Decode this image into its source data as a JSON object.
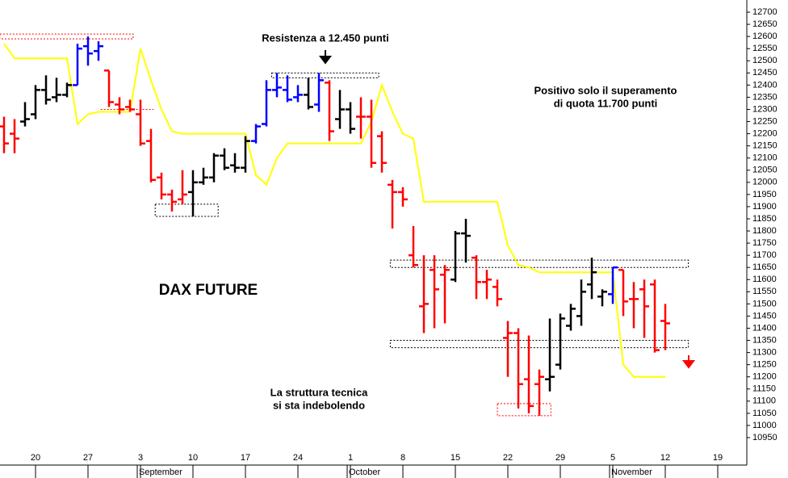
{
  "chart_data": {
    "type": "ohlc",
    "title": "DAX FUTURE",
    "categories": [
      null,
      null,
      null,
      "20",
      null,
      null,
      null,
      null,
      "27",
      null,
      null,
      null,
      null,
      "3",
      null,
      null,
      null,
      null,
      "10",
      null,
      null,
      null,
      null,
      "17",
      null,
      null,
      null,
      null,
      "24",
      null,
      null,
      null,
      null,
      "1",
      null,
      null,
      null,
      null,
      "8",
      null,
      null,
      null,
      null,
      "15",
      null,
      null,
      null,
      null,
      "22",
      null,
      null,
      null,
      null,
      "29",
      null,
      null,
      null,
      null,
      "5",
      null,
      null,
      null,
      null,
      "12",
      null,
      null,
      null,
      null,
      "19"
    ],
    "months": [
      "September",
      "October",
      "November"
    ],
    "open": [
      12230,
      12200,
      12250,
      12280,
      12380,
      12350,
      12360,
      12400,
      12560,
      12540,
      12460,
      12320,
      12310,
      12280,
      12170,
      12020,
      11950,
      11930,
      11960,
      12000,
      12020,
      12110,
      12070,
      12060,
      12170,
      12240,
      12380,
      12380,
      12350,
      12360,
      12320,
      12410,
      12260,
      12300,
      12270,
      12270,
      12190,
      11990,
      11960,
      11700,
      11490,
      11640,
      11620,
      11600,
      11790,
      11690,
      11590,
      11570,
      11360,
      11380,
      11190,
      11170,
      11190,
      11250,
      11410,
      11450,
      11580,
      11530,
      11540,
      11640,
      11520,
      11560,
      11580,
      11430,
      null,
      null,
      null,
      null,
      null
    ],
    "high": [
      12270,
      12260,
      12330,
      12400,
      12440,
      12430,
      12410,
      12570,
      12600,
      12580,
      12460,
      12350,
      12340,
      12340,
      12220,
      12040,
      11970,
      12050,
      12050,
      12060,
      12120,
      12140,
      12120,
      12190,
      12240,
      12420,
      12450,
      12440,
      12400,
      12430,
      12450,
      12420,
      12380,
      12330,
      12350,
      12340,
      12210,
      12010,
      11980,
      11820,
      11700,
      11700,
      11660,
      11800,
      11850,
      11700,
      11640,
      11600,
      11430,
      11400,
      11370,
      11230,
      11440,
      11460,
      11500,
      11600,
      11690,
      11560,
      11650,
      11640,
      11590,
      11600,
      11600,
      11500,
      null,
      null,
      null,
      null,
      null
    ],
    "low": [
      12120,
      12120,
      12230,
      12260,
      12320,
      12330,
      12350,
      12400,
      12480,
      12500,
      12310,
      12280,
      12290,
      12150,
      12000,
      11930,
      11880,
      11910,
      11860,
      11990,
      12000,
      12050,
      12040,
      12040,
      12160,
      12230,
      12350,
      12330,
      12330,
      12300,
      12290,
      12170,
      12220,
      12200,
      12180,
      12060,
      12040,
      11810,
      11900,
      11650,
      11380,
      11400,
      11420,
      11590,
      11670,
      11520,
      11520,
      11490,
      11200,
      11070,
      11050,
      11040,
      11140,
      11230,
      11390,
      11410,
      11520,
      11490,
      11500,
      11450,
      11400,
      11360,
      11300,
      11310,
      null,
      null,
      null,
      null,
      null
    ],
    "close": [
      12160,
      12180,
      12260,
      12380,
      12340,
      12360,
      12400,
      12550,
      12530,
      12560,
      12330,
      12300,
      12300,
      12160,
      12010,
      11950,
      11920,
      11950,
      12000,
      12020,
      12110,
      12060,
      12060,
      12170,
      12230,
      12380,
      12390,
      12340,
      12360,
      12310,
      12420,
      12210,
      12300,
      12220,
      12270,
      12080,
      12080,
      11960,
      11930,
      11660,
      11500,
      11560,
      11640,
      11790,
      11780,
      11590,
      11600,
      11520,
      11380,
      11170,
      11080,
      11200,
      11200,
      11440,
      11480,
      11550,
      11630,
      11550,
      11650,
      11510,
      11520,
      11490,
      11310,
      11420,
      null,
      null,
      null,
      null,
      null
    ],
    "bar_colors": [
      "#ff0000",
      "#ff0000",
      "#000000",
      "#000000",
      "#000000",
      "#000000",
      "#000000",
      "#0000ff",
      "#0000ff",
      "#0000ff",
      "#ff0000",
      "#ff0000",
      "#ff0000",
      "#ff0000",
      "#ff0000",
      "#ff0000",
      "#ff0000",
      "#ff0000",
      "#000000",
      "#000000",
      "#000000",
      "#000000",
      "#000000",
      "#000000",
      "#0000ff",
      "#0000ff",
      "#0000ff",
      "#0000ff",
      "#0000ff",
      "#000000",
      "#0000ff",
      "#ff0000",
      "#000000",
      "#000000",
      "#ff0000",
      "#ff0000",
      "#ff0000",
      "#ff0000",
      "#ff0000",
      "#ff0000",
      "#ff0000",
      "#ff0000",
      "#ff0000",
      "#000000",
      "#000000",
      "#ff0000",
      "#ff0000",
      "#ff0000",
      "#ff0000",
      "#ff0000",
      "#ff0000",
      "#ff0000",
      "#000000",
      "#000000",
      "#000000",
      "#000000",
      "#000000",
      "#000000",
      "#0000ff",
      "#ff0000",
      "#ff0000",
      "#ff0000",
      "#ff0000",
      "#ff0000",
      null,
      null,
      null,
      null,
      null
    ],
    "trend": {
      "color": "#ffff00",
      "values": [
        12570,
        12510,
        12510,
        12510,
        12510,
        12510,
        12510,
        12240,
        12280,
        12290,
        12290,
        12290,
        12290,
        12550,
        12420,
        12300,
        12210,
        12200,
        12200,
        12200,
        12200,
        12200,
        12200,
        12200,
        12030,
        11990,
        12100,
        12160,
        12160,
        12160,
        12160,
        12160,
        12160,
        12160,
        12160,
        12250,
        12400,
        12290,
        12200,
        12180,
        11920,
        11920,
        11920,
        11920,
        11920,
        11920,
        11920,
        11920,
        11740,
        11660,
        11650,
        11630,
        11630,
        11630,
        11630,
        11630,
        11630,
        11630,
        11630,
        11250,
        11200,
        11200,
        11200,
        11200,
        null,
        null,
        null,
        null,
        null
      ]
    },
    "zones": [
      {
        "low": 12590,
        "high": 12610,
        "start": -0.4,
        "end": 12.3,
        "color": "#ff0000"
      },
      {
        "low": 12300,
        "high": 12300,
        "start": 9.2,
        "end": 14.2,
        "color": "#ff0000"
      },
      {
        "low": 12430,
        "high": 12450,
        "start": 25.5,
        "end": 35.7,
        "color": "#000000"
      },
      {
        "low": 11860,
        "high": 11910,
        "start": 14.4,
        "end": 20.4,
        "color": "#000000"
      },
      {
        "low": 11650,
        "high": 11680,
        "start": 36.8,
        "end": 65.2,
        "color": "#000000"
      },
      {
        "low": 11320,
        "high": 11350,
        "start": 36.8,
        "end": 65.2,
        "color": "#000000"
      },
      {
        "low": 11040,
        "high": 11090,
        "start": 47,
        "end": 52.1,
        "color": "#ff0000"
      }
    ],
    "annotations": [
      {
        "lines": [
          "Resistenza a 12.450 punti"
        ],
        "color": "#000000"
      },
      {
        "lines": [
          "Positivo solo il superamento",
          "di quota 11.700 punti"
        ],
        "color": "#000000"
      },
      {
        "lines": [
          "La struttura tecnica",
          "si sta indebolendo"
        ],
        "color": "#ff0000"
      }
    ],
    "ylim": [
      10837,
      12750
    ],
    "yticks": [
      12700,
      12650,
      12600,
      12550,
      12500,
      12450,
      12400,
      12350,
      12300,
      12250,
      12200,
      12150,
      12100,
      12050,
      12000,
      11950,
      11900,
      11850,
      11800,
      11750,
      11700,
      11650,
      11600,
      11550,
      11500,
      11450,
      11400,
      11350,
      11300,
      11250,
      11200,
      11150,
      11100,
      11050,
      11000,
      10950
    ]
  }
}
